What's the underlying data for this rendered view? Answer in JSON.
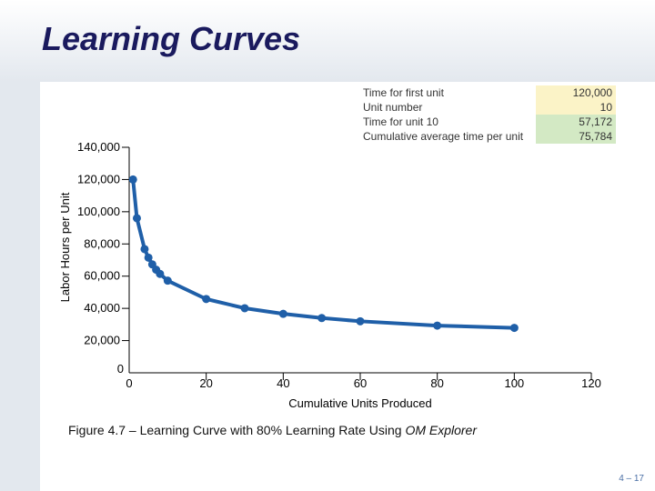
{
  "slide": {
    "title": "Learning Curves",
    "caption_prefix": "Figure 4.7 – Learning Curve with 80% Learning Rate Using ",
    "caption_software": "OM Explorer",
    "page_number": "4 – 17"
  },
  "info_table": {
    "rows": [
      {
        "label": "Time for first unit",
        "value": "120,000",
        "color": "#fbf3c7"
      },
      {
        "label": "Unit number",
        "value": "10",
        "color": "#fbf3c7"
      },
      {
        "label": "Time for unit 10",
        "value": "57,172",
        "color": "#d3e9c4"
      },
      {
        "label": "Cumulative average time per unit",
        "value": "75,784",
        "color": "#d3e9c4"
      }
    ]
  },
  "chart_data": {
    "type": "line",
    "xlabel": "Cumulative Units Produced",
    "ylabel": "Labor Hours per Unit",
    "xlim": [
      0,
      120
    ],
    "ylim": [
      0,
      140000
    ],
    "x_ticks": [
      0,
      20,
      40,
      60,
      80,
      100,
      120
    ],
    "x_tick_labels": [
      "0",
      "20",
      "40",
      "60",
      "80",
      "100",
      "120"
    ],
    "y_ticks": [
      0,
      20000,
      40000,
      60000,
      80000,
      100000,
      120000,
      140000
    ],
    "y_tick_labels": [
      "0",
      "20,000",
      "40,000",
      "60,000",
      "80,000",
      "100,000",
      "120,000",
      "140,000"
    ],
    "series_color": "#1f5fa8",
    "series": [
      {
        "x": [
          1,
          2,
          4,
          5,
          6,
          7,
          8,
          10,
          20,
          30,
          40,
          50,
          60,
          80,
          100
        ],
        "y": [
          120000,
          96000,
          76800,
          71500,
          67300,
          64000,
          61400,
          57200,
          45800,
          40100,
          36600,
          34000,
          32000,
          29300,
          27900
        ]
      }
    ]
  }
}
